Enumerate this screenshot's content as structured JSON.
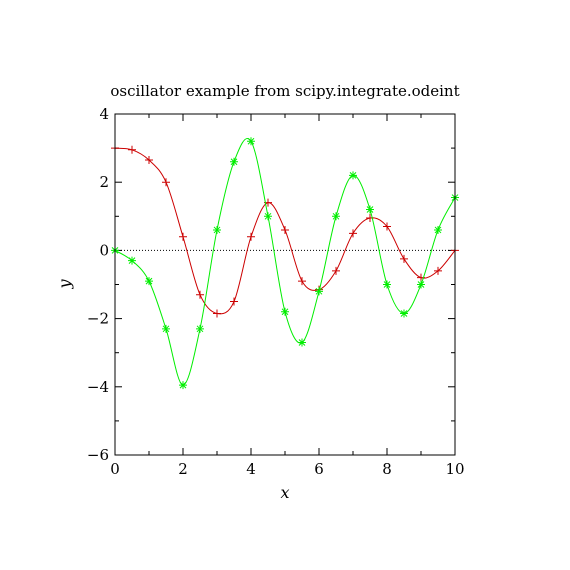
{
  "chart_data": {
    "type": "line",
    "title": "oscillator example from scipy.integrate.odeint",
    "xlabel": "x",
    "ylabel": "y",
    "xlim": [
      0,
      10
    ],
    "ylim": [
      -6,
      4
    ],
    "xticks": [
      0,
      2,
      4,
      6,
      8,
      10
    ],
    "yticks": [
      -6,
      -4,
      -2,
      0,
      2,
      4
    ],
    "xtick_labels": [
      "0",
      "2",
      "4",
      "6",
      "8",
      "10"
    ],
    "ytick_labels": [
      "−6",
      "−4",
      "−2",
      "0",
      "2",
      "4"
    ],
    "grid": false,
    "zero_line": true,
    "series": [
      {
        "marker": "plus",
        "color": "#cc0000",
        "x": [
          0,
          0.5,
          1,
          1.5,
          2,
          2.5,
          3,
          3.5,
          4,
          4.5,
          5,
          5.5,
          6,
          6.5,
          7,
          7.5,
          8,
          8.5,
          9,
          9.5,
          10
        ],
        "y": [
          3.0,
          2.95,
          2.65,
          2.0,
          0.4,
          -1.3,
          -1.85,
          -1.5,
          0.4,
          1.4,
          0.6,
          -0.9,
          -1.15,
          -0.6,
          0.5,
          0.95,
          0.7,
          -0.25,
          -0.8,
          -0.6,
          0.0
        ]
      },
      {
        "marker": "star",
        "color": "#00ee00",
        "x": [
          0,
          0.5,
          1,
          1.5,
          2,
          2.5,
          3,
          3.5,
          4,
          4.5,
          5,
          5.5,
          6,
          6.5,
          7,
          7.5,
          8,
          8.5,
          9,
          9.5,
          10
        ],
        "y": [
          0.0,
          -0.3,
          -0.9,
          -2.3,
          -3.95,
          -2.3,
          0.6,
          2.6,
          3.2,
          1.0,
          -1.8,
          -2.7,
          -1.2,
          1.0,
          2.2,
          1.2,
          -1.0,
          -1.85,
          -1.0,
          0.6,
          1.55
        ]
      }
    ]
  }
}
